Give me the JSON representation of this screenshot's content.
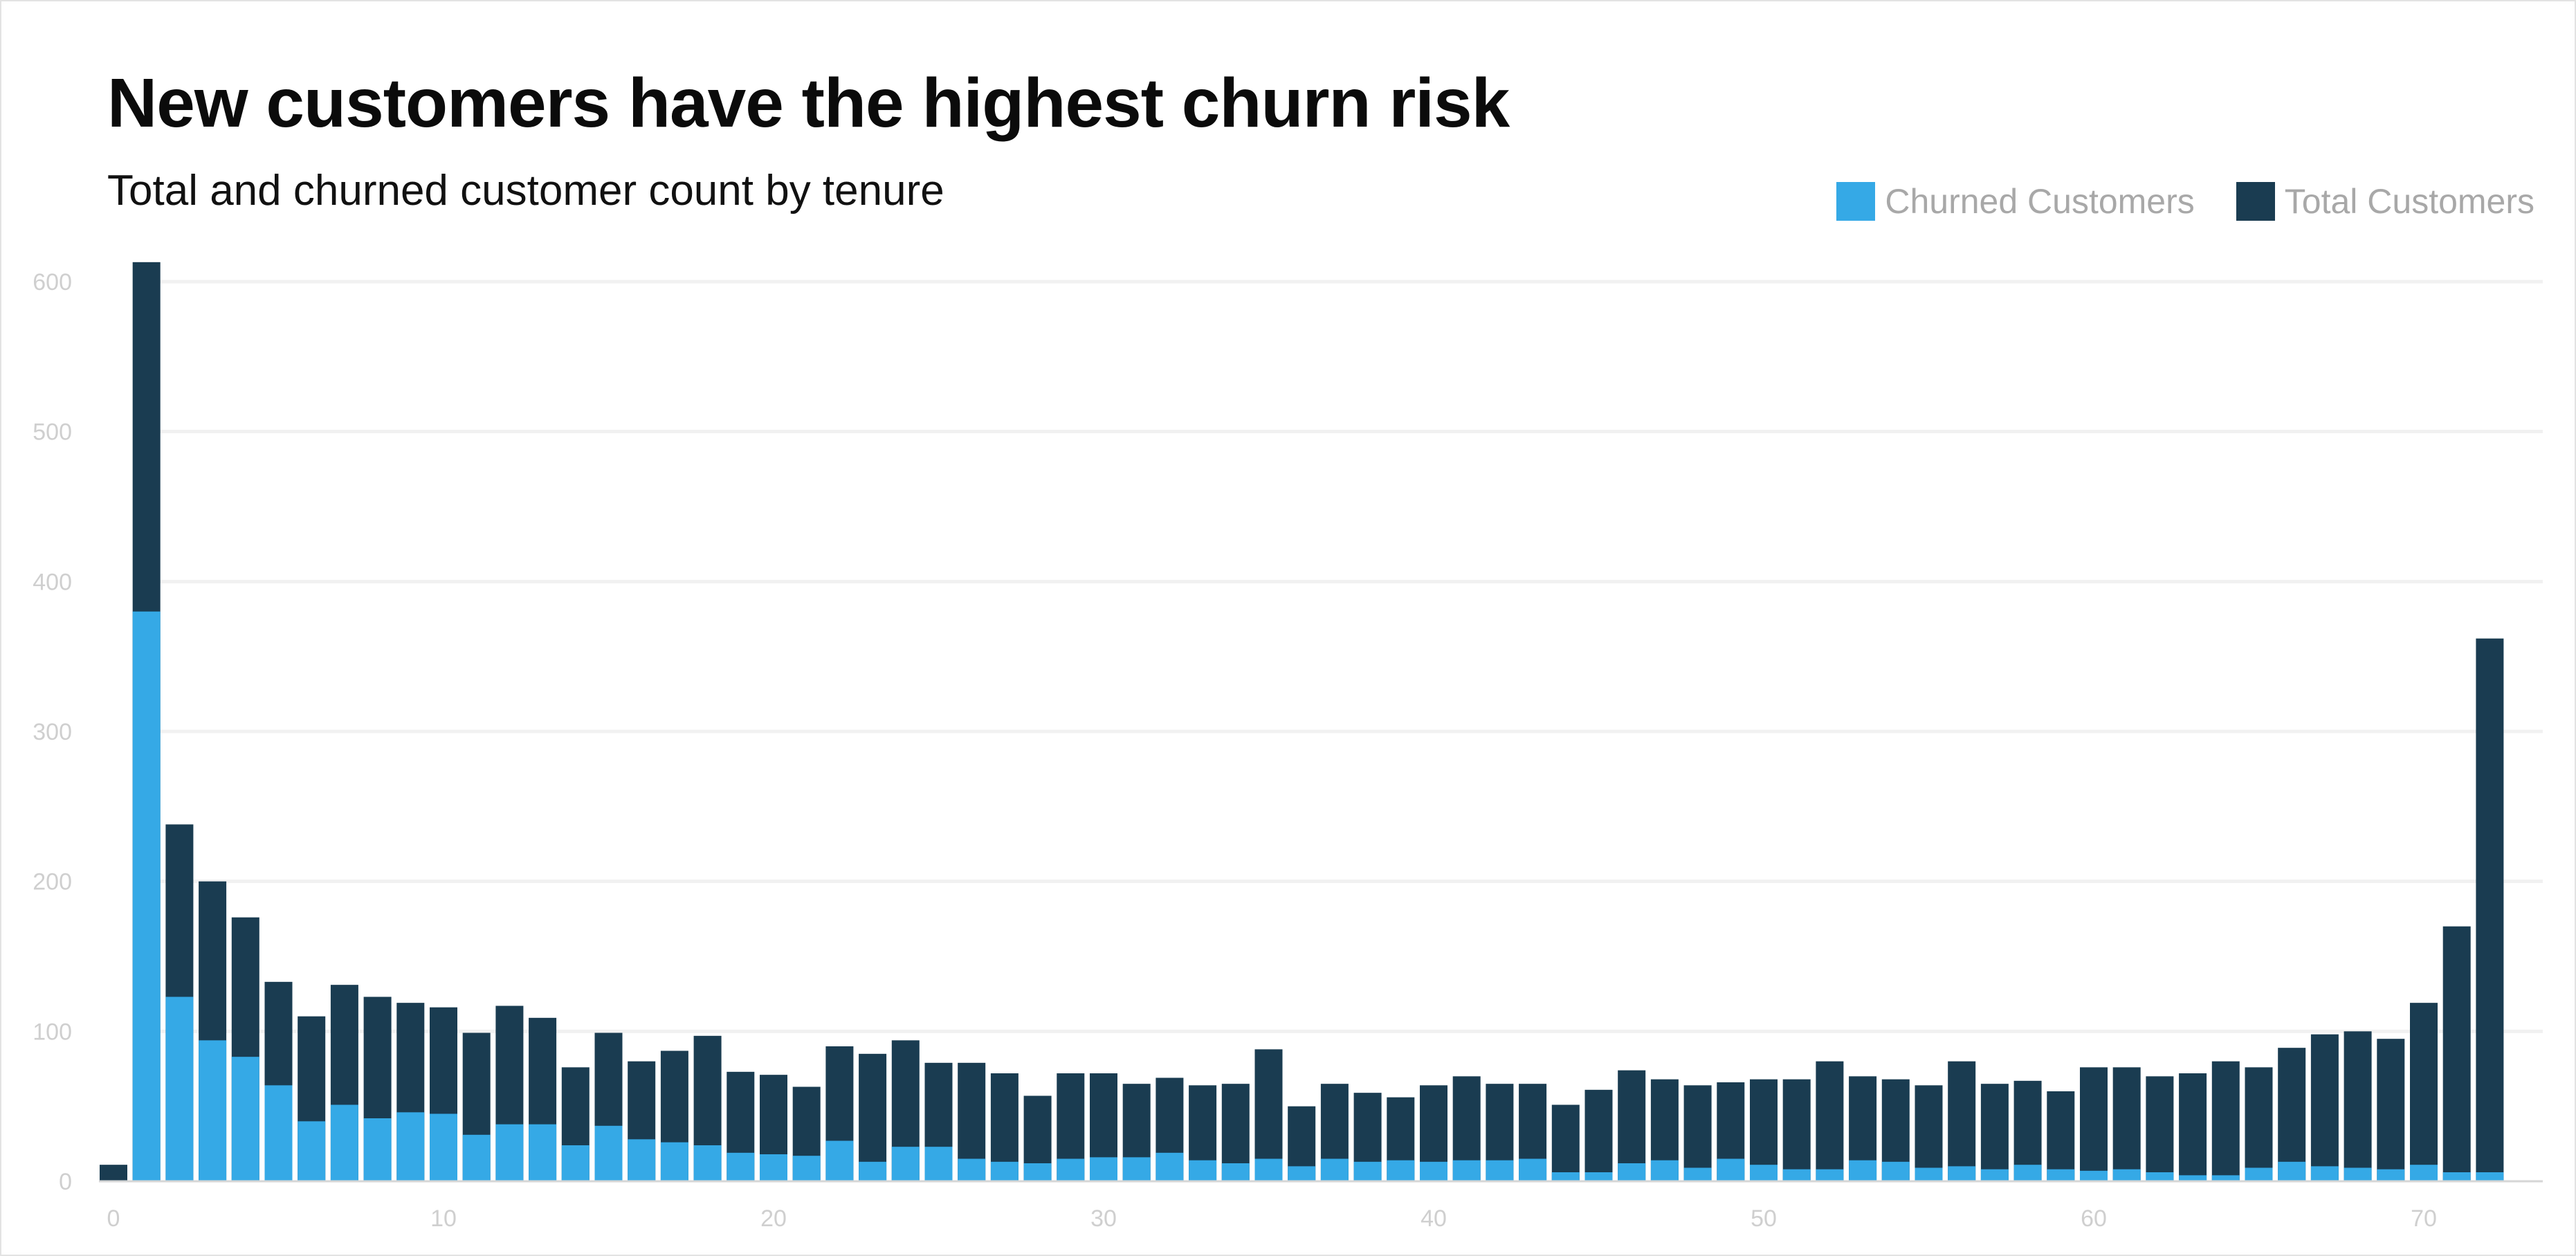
{
  "chart_data": {
    "type": "bar",
    "title": "New customers have the highest churn risk",
    "subtitle": "Total and churned customer count by tenure",
    "xlabel": "",
    "ylabel": "",
    "ylim": [
      0,
      620
    ],
    "yticks": [
      0,
      100,
      200,
      300,
      400,
      500,
      600
    ],
    "xticks": [
      0,
      10,
      20,
      30,
      40,
      50,
      60,
      70
    ],
    "grid": true,
    "legend_position": "top-right",
    "colors": {
      "churned": "#35a9e6",
      "total": "#1a3c51"
    },
    "legend": [
      "Churned Customers",
      "Total Customers"
    ],
    "x": [
      0,
      1,
      2,
      3,
      4,
      5,
      6,
      7,
      8,
      9,
      10,
      11,
      12,
      13,
      14,
      15,
      16,
      17,
      18,
      19,
      20,
      21,
      22,
      23,
      24,
      25,
      26,
      27,
      28,
      29,
      30,
      31,
      32,
      33,
      34,
      35,
      36,
      37,
      38,
      39,
      40,
      41,
      42,
      43,
      44,
      45,
      46,
      47,
      48,
      49,
      50,
      51,
      52,
      53,
      54,
      55,
      56,
      57,
      58,
      59,
      60,
      61,
      62,
      63,
      64,
      65,
      66,
      67,
      68,
      69,
      70,
      71,
      72
    ],
    "series": [
      {
        "name": "Total Customers",
        "values": [
          11,
          613,
          238,
          200,
          176,
          133,
          110,
          131,
          123,
          119,
          116,
          99,
          117,
          109,
          76,
          99,
          80,
          87,
          97,
          73,
          71,
          63,
          90,
          85,
          94,
          79,
          79,
          72,
          57,
          72,
          72,
          65,
          69,
          64,
          65,
          88,
          50,
          65,
          59,
          56,
          64,
          70,
          65,
          65,
          51,
          61,
          74,
          68,
          64,
          66,
          68,
          68,
          80,
          70,
          68,
          64,
          80,
          65,
          67,
          60,
          76,
          76,
          70,
          72,
          80,
          76,
          89,
          98,
          100,
          95,
          119,
          170,
          362
        ]
      },
      {
        "name": "Churned Customers",
        "values": [
          0,
          380,
          123,
          94,
          83,
          64,
          40,
          51,
          42,
          46,
          45,
          31,
          38,
          38,
          24,
          37,
          28,
          26,
          24,
          19,
          18,
          17,
          27,
          13,
          23,
          23,
          15,
          13,
          12,
          15,
          16,
          16,
          19,
          14,
          12,
          15,
          10,
          15,
          13,
          14,
          13,
          14,
          14,
          15,
          6,
          6,
          12,
          14,
          9,
          15,
          11,
          8,
          8,
          14,
          13,
          9,
          10,
          8,
          11,
          8,
          7,
          8,
          6,
          4,
          4,
          9,
          13,
          10,
          9,
          8,
          11,
          6,
          6
        ]
      }
    ]
  }
}
